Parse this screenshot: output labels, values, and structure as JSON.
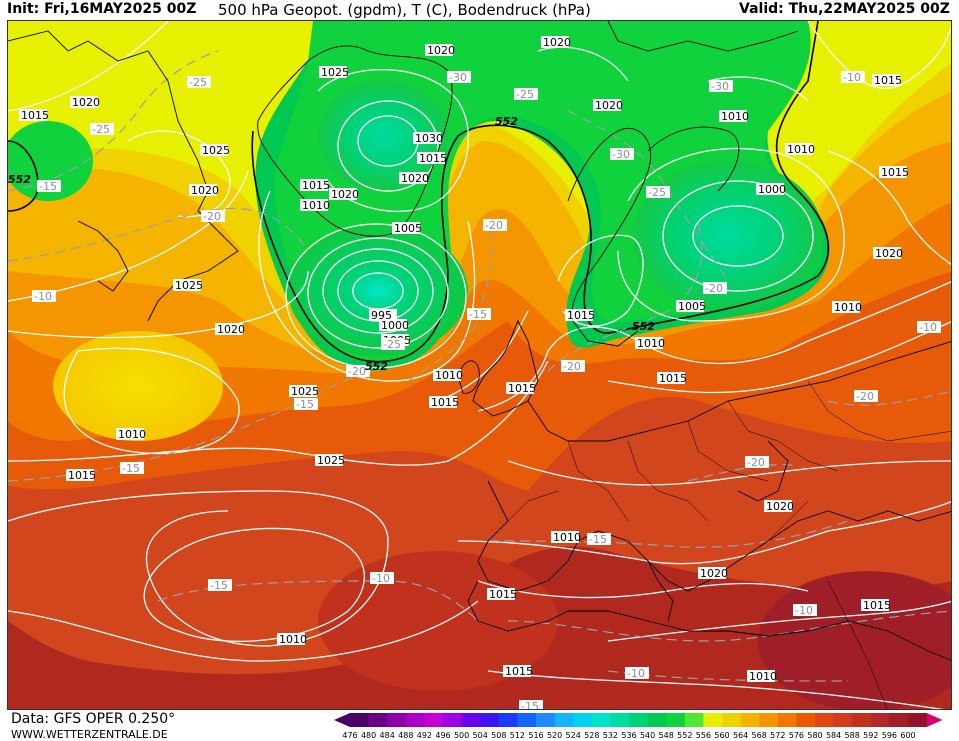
{
  "header": {
    "init": "Init: Fri,16MAY2025 00Z",
    "title": "500 hPa Geopot. (gpdm), T (C), Bodendruck (hPa)",
    "valid": "Valid: Thu,22MAY2025 00Z"
  },
  "footer": {
    "data_source": "Data: GFS OPER 0.250°",
    "website": "WWW.WETTERZENTRALE.DE"
  },
  "legend": {
    "values": [
      "476",
      "480",
      "484",
      "488",
      "492",
      "496",
      "500",
      "504",
      "508",
      "512",
      "516",
      "520",
      "524",
      "528",
      "532",
      "536",
      "540",
      "548",
      "552",
      "556",
      "560",
      "564",
      "568",
      "572",
      "576",
      "580",
      "584",
      "588",
      "592",
      "596",
      "600"
    ],
    "colors": [
      "#4b0063",
      "#6a0088",
      "#8a00a6",
      "#a800c4",
      "#c400d8",
      "#9b00e6",
      "#6a00f0",
      "#3c14f5",
      "#1e3cf8",
      "#1464ff",
      "#1e8cff",
      "#14b4ff",
      "#00d2f0",
      "#00e6c8",
      "#00dca0",
      "#00d278",
      "#00c850",
      "#10d23c",
      "#50e632",
      "#e6f000",
      "#f0d200",
      "#f5b400",
      "#f59600",
      "#f07800",
      "#eb5a00",
      "#e04614",
      "#d23c1e",
      "#c0321e",
      "#b02828",
      "#a01e28",
      "#90142a"
    ]
  },
  "map": {
    "isobar_labels": [
      "1020",
      "1025",
      "1015",
      "1020",
      "1020",
      "1025",
      "1030",
      "1015",
      "1015",
      "1020",
      "1010",
      "1020",
      "1005",
      "995",
      "1000",
      "1005",
      "1025",
      "1020",
      "1010",
      "1015",
      "1010",
      "1015",
      "1025",
      "1015",
      "1010",
      "1025",
      "1020",
      "1015",
      "1010",
      "1020",
      "1015",
      "1010",
      "1015",
      "1020",
      "1005",
      "1000",
      "1010",
      "1015",
      "1015",
      "1020",
      "1010",
      "1015",
      "1020",
      "1015",
      "1010",
      "1010",
      "1010",
      "1025",
      "1020",
      "1015",
      "1020",
      "1025",
      "1020",
      "1010",
      "1010",
      "1015"
    ],
    "temperature_labels": [
      "-25",
      "-25",
      "-15",
      "-20",
      "-30",
      "-25",
      "-30",
      "-30",
      "-20",
      "-25",
      "-20",
      "-15",
      "-25",
      "-20",
      "-15",
      "-20",
      "-20",
      "-15",
      "-20",
      "-15",
      "-15",
      "-10",
      "-10",
      "-10",
      "-15",
      "-10",
      "-10",
      "-10"
    ],
    "height_labels": [
      "552",
      "552",
      "552",
      "552"
    ]
  }
}
